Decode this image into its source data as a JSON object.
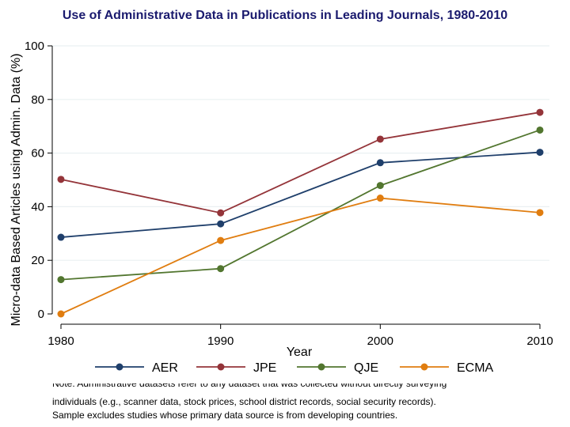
{
  "chart_data": {
    "type": "line",
    "title": "Use of Administrative Data in Publications in Leading Journals, 1980-2010",
    "xlabel": "Year",
    "ylabel": "Micro-data Based Articles using Admin. Data (%)",
    "x": [
      1980,
      1990,
      2000,
      2010
    ],
    "xlim": [
      1980,
      2010
    ],
    "ylim": [
      0,
      100
    ],
    "yticks": [
      0,
      20,
      40,
      60,
      80,
      100
    ],
    "xticks": [
      1980,
      1990,
      2000,
      2010
    ],
    "grid": "horizontal",
    "legend_position": "bottom",
    "series": [
      {
        "name": "AER",
        "color": "#1f3f6b",
        "values": [
          28.6,
          33.6,
          56.4,
          60.3
        ]
      },
      {
        "name": "JPE",
        "color": "#943439",
        "values": [
          50.2,
          37.7,
          65.2,
          75.2
        ]
      },
      {
        "name": "QJE",
        "color": "#52762f",
        "values": [
          12.8,
          16.9,
          47.9,
          68.6
        ]
      },
      {
        "name": "ECMA",
        "color": "#e07d10",
        "values": [
          0.0,
          27.4,
          43.2,
          37.8
        ]
      }
    ]
  },
  "colors": {
    "title": "#1a1a6e",
    "grid": "#eaf0f2",
    "axis": "#000000"
  },
  "note": {
    "line1_partial": "Note: Administrative datasets refer to any dataset that was collected without directly surveying",
    "line2": "individuals (e.g., scanner data, stock prices, school district records, social security records).",
    "line3": "Sample excludes studies whose primary data source  is from developing countries."
  }
}
